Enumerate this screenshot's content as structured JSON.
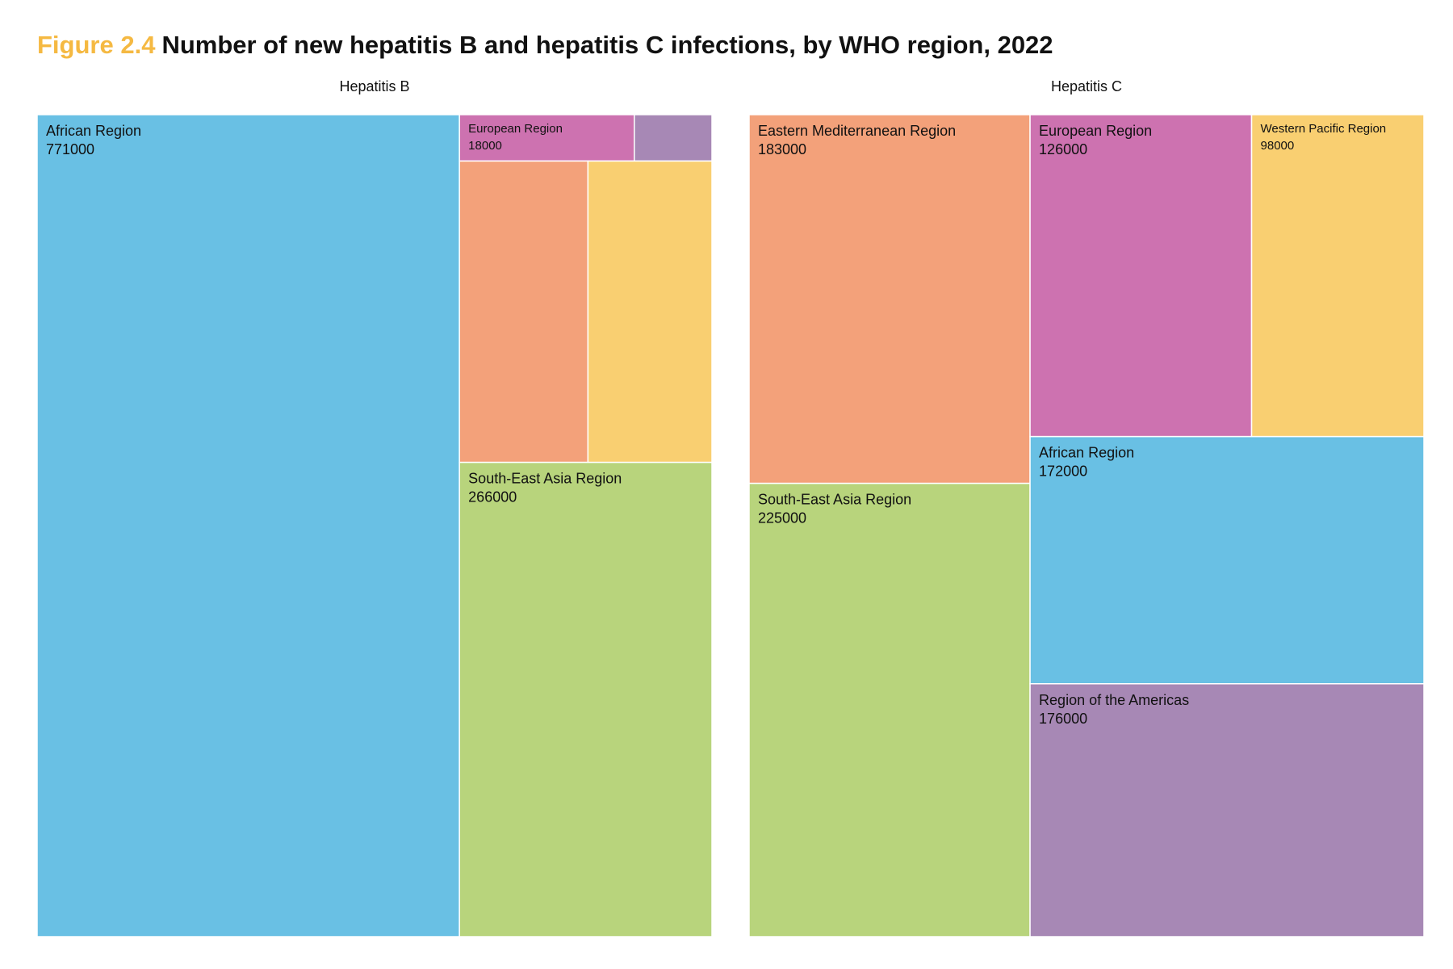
{
  "title": {
    "figure_number": "Figure 2.4",
    "text": "Number of new hepatitis B and hepatitis C infections, by WHO region, 2022"
  },
  "chart_data": [
    {
      "type": "treemap",
      "title": "Hepatitis B",
      "tiles": [
        {
          "label": "African Region",
          "value": 771000,
          "color": "#69c0e4"
        },
        {
          "label": "European Region",
          "value": 18000,
          "color": "#cd72b0"
        },
        {
          "label": "",
          "value": 8000,
          "color": "#a788b5"
        },
        {
          "label": "",
          "value": 86000,
          "color": "#f3a17a"
        },
        {
          "label": "",
          "value": 83000,
          "color": "#f9cf71"
        },
        {
          "label": "South-East Asia Region",
          "value": 266000,
          "color": "#b8d47c"
        }
      ]
    },
    {
      "type": "treemap",
      "title": "Hepatitis C",
      "tiles": [
        {
          "label": "Eastern Mediterranean Region",
          "value": 183000,
          "color": "#f3a17a"
        },
        {
          "label": "South-East Asia Region",
          "value": 225000,
          "color": "#b8d47c"
        },
        {
          "label": "European Region",
          "value": 126000,
          "color": "#cd72b0"
        },
        {
          "label": "Western Pacific Region",
          "value": 98000,
          "color": "#f9cf71"
        },
        {
          "label": "African Region",
          "value": 172000,
          "color": "#69c0e4"
        },
        {
          "label": "Region of the Americas",
          "value": 176000,
          "color": "#a788b5"
        }
      ]
    }
  ]
}
